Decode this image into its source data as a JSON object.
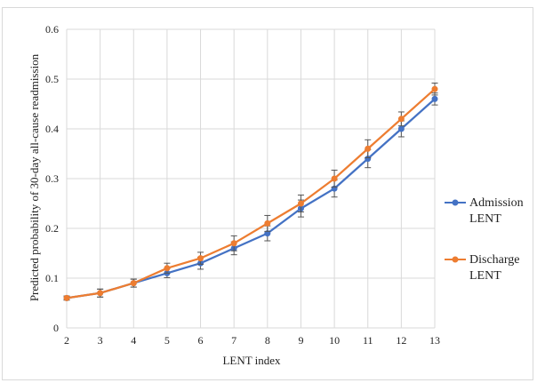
{
  "chart_data": {
    "type": "line",
    "title": "",
    "xlabel": "LENT index",
    "ylabel": "Predicted probability  of 30-day all-cause readmission",
    "x": [
      2,
      3,
      4,
      5,
      6,
      7,
      8,
      9,
      10,
      11,
      12,
      13
    ],
    "xlim": [
      2,
      13
    ],
    "ylim": [
      0,
      0.6
    ],
    "yticks": [
      "0",
      "0.1",
      "0.2",
      "0.3",
      "0.4",
      "0.5",
      "0.6"
    ],
    "grid": "vertical and horizontal",
    "legend_position": "right",
    "series": [
      {
        "name_line1": "Admission",
        "name_line2": "LENT",
        "color": "#4472c4",
        "values": [
          0.06,
          0.07,
          0.09,
          0.11,
          0.13,
          0.16,
          0.19,
          0.24,
          0.28,
          0.34,
          0.4,
          0.46
        ],
        "error": [
          0.004,
          0.008,
          0.008,
          0.009,
          0.012,
          0.013,
          0.015,
          0.017,
          0.017,
          0.018,
          0.016,
          0.012
        ]
      },
      {
        "name_line1": "Discharge",
        "name_line2": "LENT",
        "color": "#ed7d31",
        "values": [
          0.06,
          0.07,
          0.09,
          0.12,
          0.14,
          0.17,
          0.21,
          0.25,
          0.3,
          0.36,
          0.42,
          0.48
        ],
        "error": [
          0.004,
          0.008,
          0.008,
          0.01,
          0.012,
          0.015,
          0.016,
          0.017,
          0.017,
          0.018,
          0.014,
          0.012
        ]
      }
    ]
  }
}
